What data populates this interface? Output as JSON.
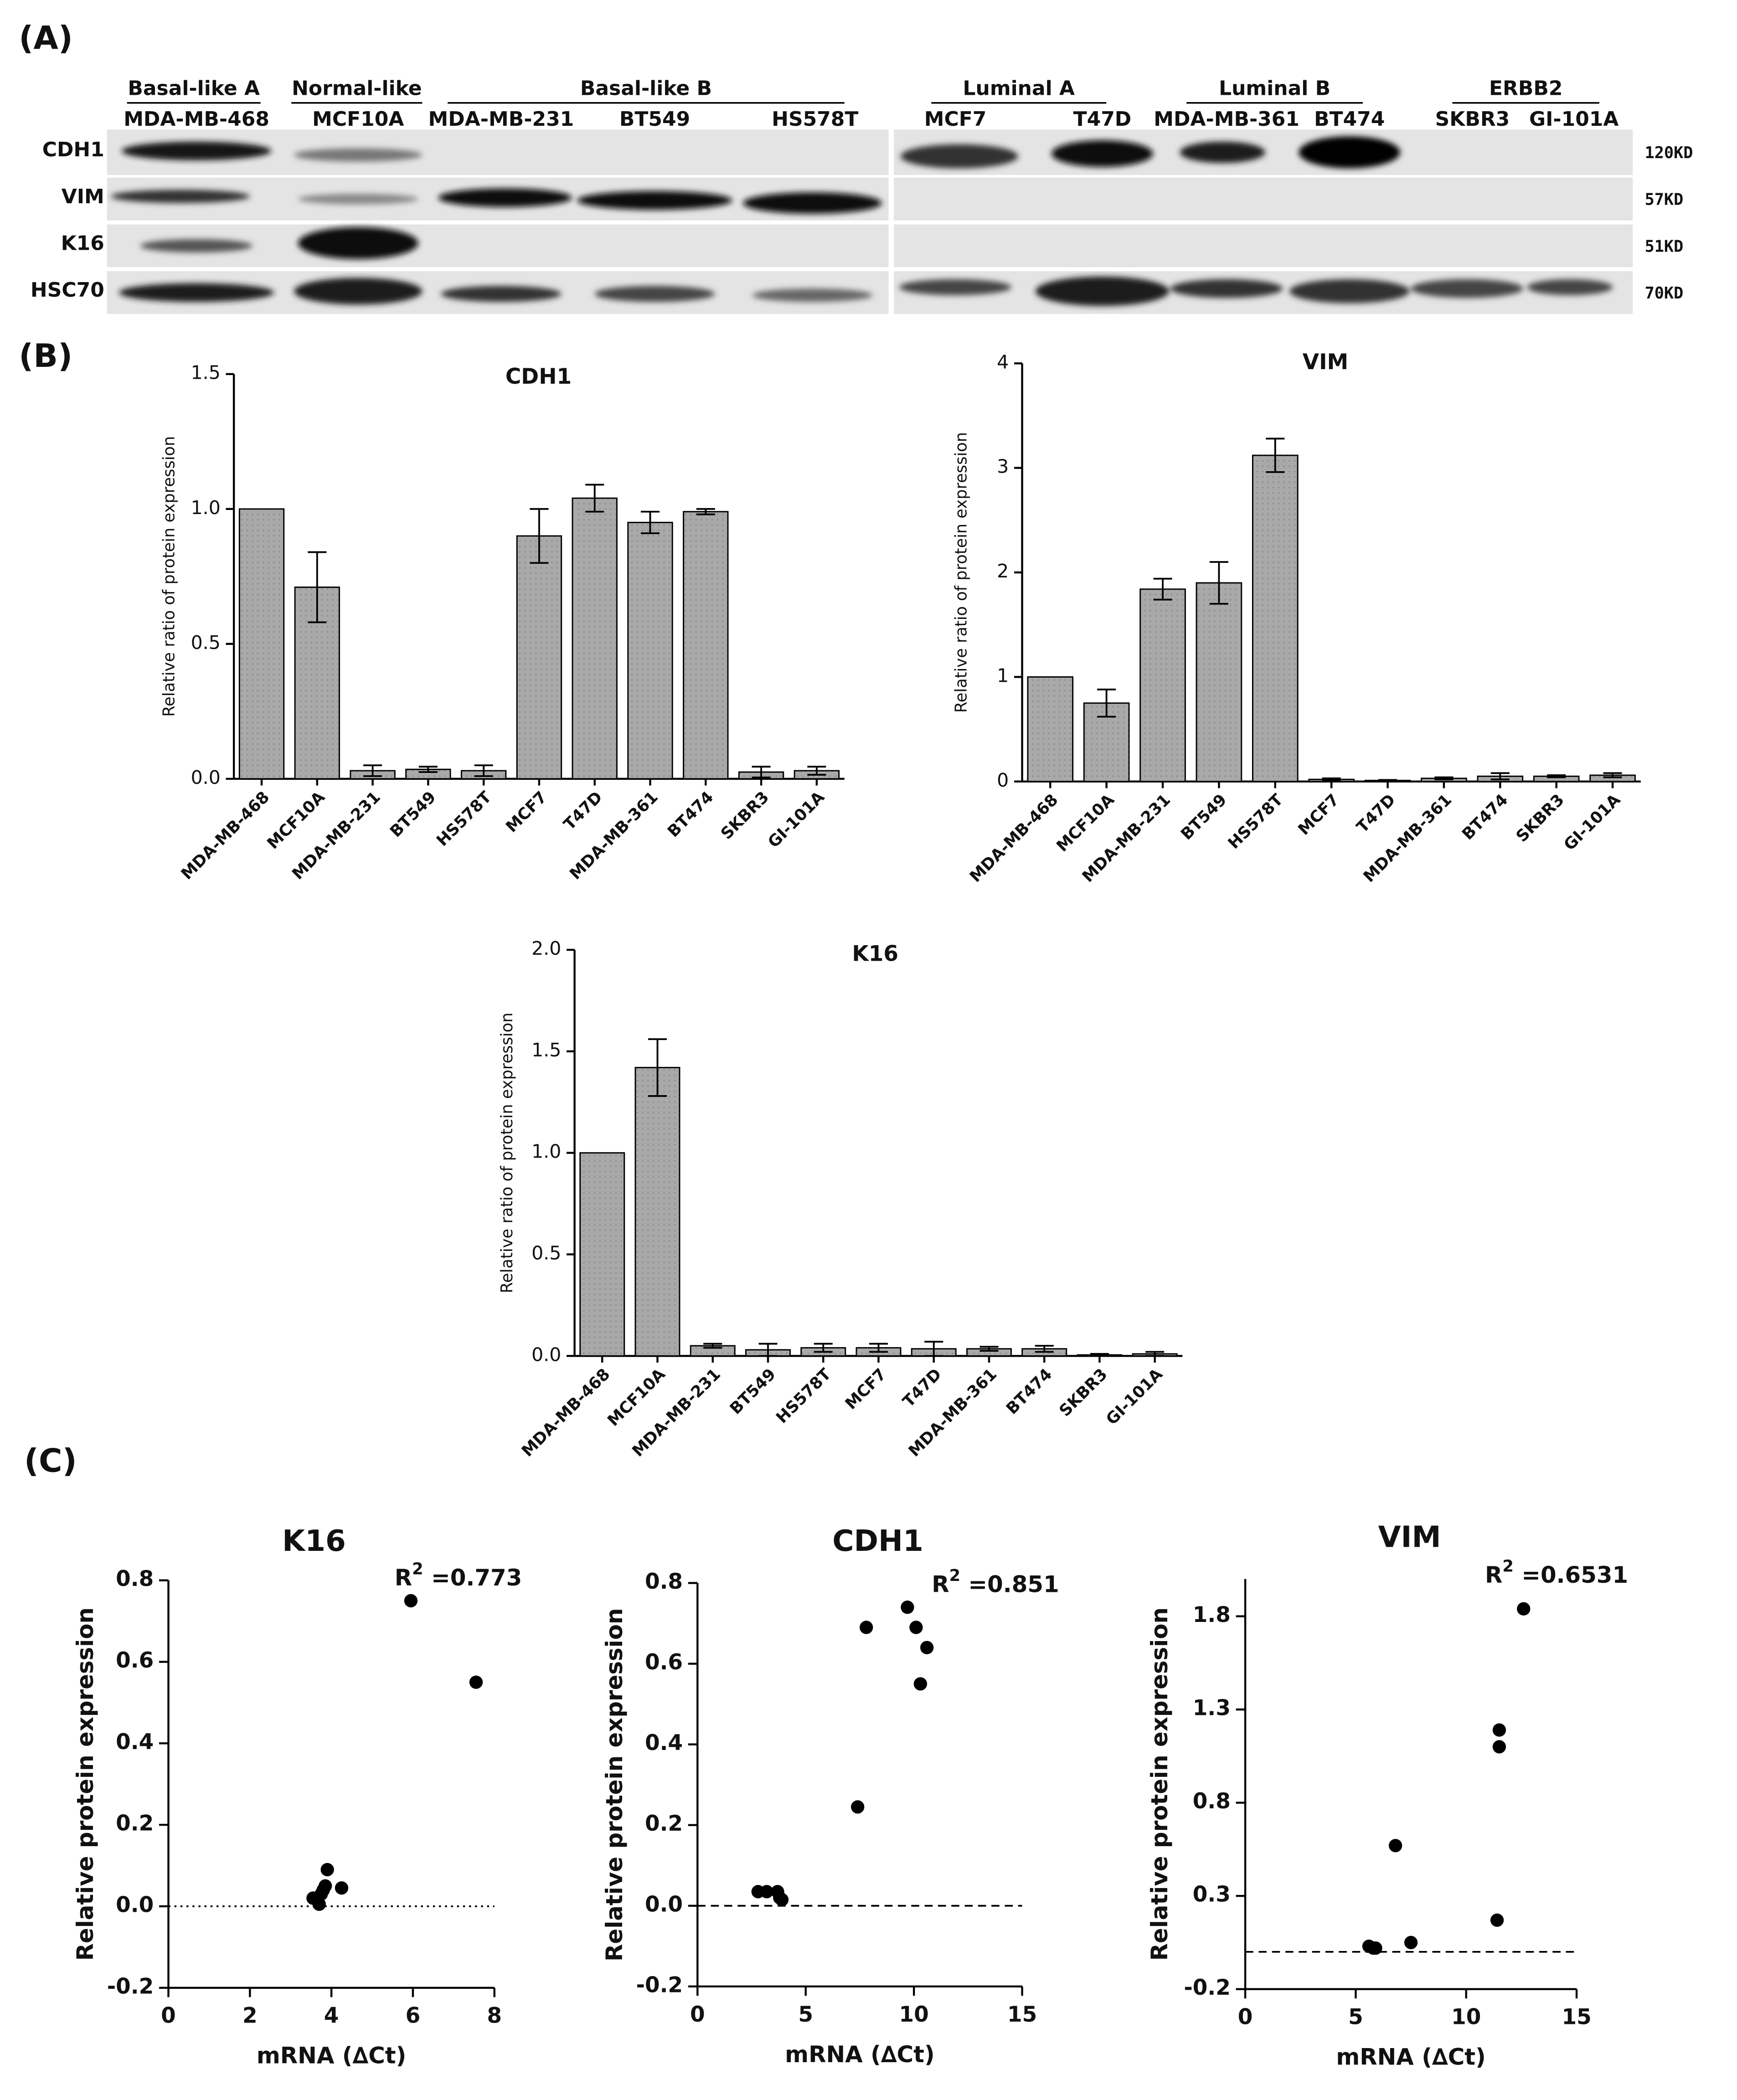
{
  "panel_labels": [
    "(A)",
    "(B)",
    "(C)"
  ],
  "blot": {
    "groups": [
      {
        "name": "Basal-like A",
        "lanes": [
          "MDA-MB-468"
        ]
      },
      {
        "name": "Normal-like",
        "lanes": [
          "MCF10A"
        ]
      },
      {
        "name": "Basal-like B",
        "lanes": [
          "MDA-MB-231",
          "BT549",
          "HS578T"
        ]
      },
      {
        "name": "Luminal A",
        "lanes": [
          "MCF7",
          "T47D"
        ]
      },
      {
        "name": "Luminal B",
        "lanes": [
          "MDA-MB-361",
          "BT474"
        ]
      },
      {
        "name": "ERBB2",
        "lanes": [
          "SKBR3",
          "GI-101A"
        ]
      }
    ],
    "rows": [
      {
        "name": "CDH1",
        "size": "120KD"
      },
      {
        "name": "VIM",
        "size": "57KD"
      },
      {
        "name": "K16",
        "size": "51KD"
      },
      {
        "name": "HSC70",
        "size": "70KD"
      }
    ]
  },
  "chart_data": [
    {
      "type": "bar",
      "title": "CDH1",
      "ylabel": "Relative ratio of protein expression",
      "categories": [
        "MDA-MB-468",
        "MCF10A",
        "MDA-MB-231",
        "BT549",
        "HS578T",
        "MCF7",
        "T47D",
        "MDA-MB-361",
        "BT474",
        "SKBR3",
        "GI-101A"
      ],
      "values": [
        1.0,
        0.71,
        0.03,
        0.035,
        0.03,
        0.9,
        1.04,
        0.95,
        0.99,
        0.025,
        0.03
      ],
      "errors": [
        0,
        0.13,
        0.02,
        0.01,
        0.02,
        0.1,
        0.05,
        0.04,
        0.01,
        0.02,
        0.015
      ],
      "color": "#a9a9a9",
      "ylim": [
        0,
        1.5
      ],
      "yticks": [
        {
          "value": 0,
          "label": "0.0"
        },
        0.5,
        {
          "value": 1,
          "label": "1.0"
        },
        1.5
      ]
    },
    {
      "type": "bar",
      "title": "VIM",
      "ylabel": "Relative ratio of protein expression",
      "categories": [
        "MDA-MB-468",
        "MCF10A",
        "MDA-MB-231",
        "BT549",
        "HS578T",
        "MCF7",
        "T47D",
        "MDA-MB-361",
        "BT474",
        "SKBR3",
        "GI-101A"
      ],
      "values": [
        1.0,
        0.75,
        1.84,
        1.9,
        3.12,
        0.02,
        0.01,
        0.03,
        0.05,
        0.05,
        0.06
      ],
      "errors": [
        0,
        0.13,
        0.1,
        0.2,
        0.16,
        0.01,
        0.005,
        0.01,
        0.03,
        0.01,
        0.02
      ],
      "color": "#a9a9a9",
      "ylim": [
        0,
        4
      ],
      "yticks": [
        0,
        1,
        2,
        3,
        4
      ]
    },
    {
      "type": "bar",
      "title": "K16",
      "ylabel": "Relative ratio of protein expression",
      "categories": [
        "MDA-MB-468",
        "MCF10A",
        "MDA-MB-231",
        "BT549",
        "HS578T",
        "MCF7",
        "T47D",
        "MDA-MB-361",
        "BT474",
        "SKBR3",
        "GI-101A"
      ],
      "values": [
        1.0,
        1.42,
        0.05,
        0.03,
        0.04,
        0.04,
        0.035,
        0.035,
        0.035,
        0.005,
        0.01
      ],
      "errors": [
        0,
        0.14,
        0.01,
        0.03,
        0.02,
        0.02,
        0.035,
        0.01,
        0.015,
        0.005,
        0.01
      ],
      "color": "#a9a9a9",
      "ylim": [
        0,
        2
      ],
      "yticks": [
        {
          "value": 0,
          "label": "0.0"
        },
        0.5,
        {
          "value": 1,
          "label": "1.0"
        },
        1.5,
        {
          "value": 2,
          "label": "2.0"
        }
      ]
    },
    {
      "type": "scatter",
      "title": "K16",
      "xlabel": "mRNA (∆Ct)",
      "ylabel": "Relative protein expression",
      "annotation": {
        "base": "R",
        "sup": "2",
        "text": " =0.773"
      },
      "x": [
        3.55,
        3.7,
        3.75,
        3.8,
        3.85,
        3.9,
        4.25,
        5.95,
        7.55
      ],
      "values": [
        0.02,
        0.005,
        0.03,
        0.04,
        0.05,
        0.09,
        0.045,
        0.75,
        0.55
      ],
      "color": "#000000",
      "reference_line": {
        "y": 0,
        "style": "dotted"
      },
      "xlim": [
        0,
        8
      ],
      "xticks": [
        0,
        2,
        4,
        6,
        8
      ],
      "ylim": [
        -0.2,
        0.8
      ],
      "yticks": [
        -0.2,
        {
          "value": 0,
          "label": "0.0"
        },
        0.2,
        0.4,
        0.6,
        0.8
      ]
    },
    {
      "type": "scatter",
      "title": "CDH1",
      "xlabel": "mRNA (∆Ct)",
      "ylabel": "Relative protein expression",
      "annotation": {
        "base": "R",
        "sup": "2",
        "text": " =0.851"
      },
      "x": [
        2.8,
        3.2,
        3.7,
        3.8,
        3.9,
        7.4,
        7.8,
        9.7,
        10.1,
        10.6,
        10.3
      ],
      "values": [
        0.035,
        0.035,
        0.035,
        0.02,
        0.015,
        0.245,
        0.69,
        0.74,
        0.69,
        0.64,
        0.55
      ],
      "color": "#000000",
      "reference_line": {
        "y": 0,
        "style": "dashed"
      },
      "xlim": [
        0,
        15
      ],
      "xticks": [
        0,
        5,
        10,
        15
      ],
      "ylim": [
        -0.2,
        0.8
      ],
      "yticks": [
        -0.2,
        {
          "value": 0,
          "label": "0.0"
        },
        0.2,
        0.4,
        0.6,
        0.8
      ]
    },
    {
      "type": "scatter",
      "title": "VIM",
      "xlabel": "mRNA (∆Ct)",
      "ylabel": "Relative protein expression",
      "annotation": {
        "base": "R",
        "sup": "2",
        "text": " =0.6531"
      },
      "x": [
        5.6,
        5.8,
        5.9,
        6.8,
        7.5,
        11.4,
        11.5,
        11.5,
        12.6
      ],
      "values": [
        0.03,
        0.02,
        0.02,
        0.57,
        0.05,
        0.17,
        1.1,
        1.19,
        1.84
      ],
      "color": "#000000",
      "reference_line": {
        "y": 0,
        "style": "dashed"
      },
      "xlim": [
        0,
        15
      ],
      "xticks": [
        0,
        5,
        10,
        15
      ],
      "ylim": [
        -0.2,
        2.0
      ],
      "yticks": [
        -0.2,
        0.3,
        0.8,
        1.3,
        1.8
      ]
    }
  ]
}
